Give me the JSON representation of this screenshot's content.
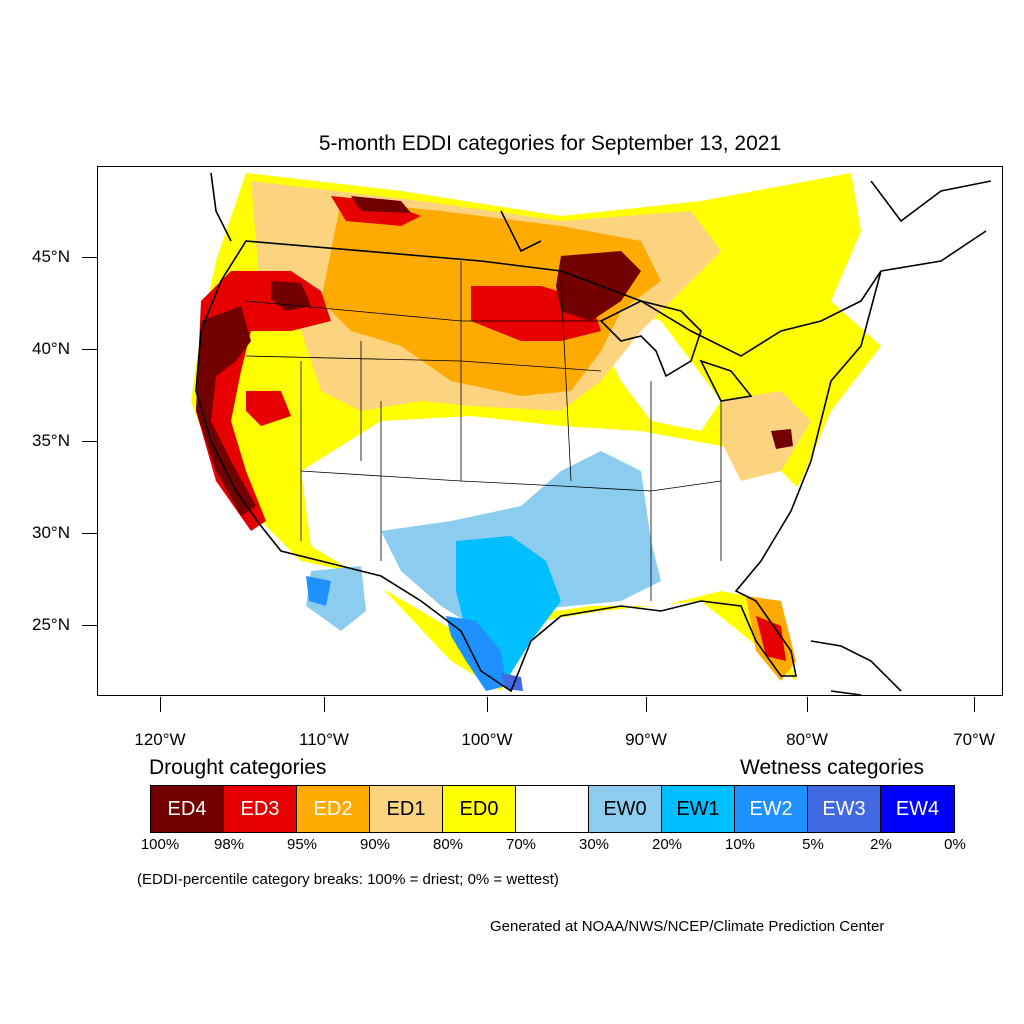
{
  "title": "5-month EDDI categories for September 13, 2021",
  "axes": {
    "lat_labels": [
      "45°N",
      "40°N",
      "35°N",
      "30°N",
      "25°N"
    ],
    "lon_labels": [
      "120°W",
      "110°W",
      "100°W",
      "90°W",
      "80°W",
      "70°W"
    ]
  },
  "legend": {
    "drought_heading": "Drought categories",
    "wetness_heading": "Wetness categories",
    "categories": [
      {
        "label": "ED4",
        "color": "#730000",
        "text_color": "#ffffff"
      },
      {
        "label": "ED3",
        "color": "#e60000",
        "text_color": "#ffffff"
      },
      {
        "label": "ED2",
        "color": "#ffaa00",
        "text_color": "#ffffff"
      },
      {
        "label": "ED1",
        "color": "#fcd37f",
        "text_color": "#000000"
      },
      {
        "label": "ED0",
        "color": "#ffff00",
        "text_color": "#000000"
      },
      {
        "label": "",
        "color": "#ffffff",
        "text_color": "#000000"
      },
      {
        "label": "EW0",
        "color": "#8ccdef",
        "text_color": "#000000"
      },
      {
        "label": "EW1",
        "color": "#00bfff",
        "text_color": "#000000"
      },
      {
        "label": "EW2",
        "color": "#1e90ff",
        "text_color": "#ffffff"
      },
      {
        "label": "EW3",
        "color": "#4169e1",
        "text_color": "#ffffff"
      },
      {
        "label": "EW4",
        "color": "#0000ff",
        "text_color": "#ffffff"
      }
    ],
    "percentiles": [
      "100%",
      "98%",
      "95%",
      "90%",
      "80%",
      "70%",
      "30%",
      "20%",
      "10%",
      "5%",
      "2%",
      "0%"
    ]
  },
  "note": "(EDDI-percentile category breaks: 100% = driest; 0% = wettest)",
  "credit": "Generated at NOAA/NWS/NCEP/Climate Prediction Center"
}
